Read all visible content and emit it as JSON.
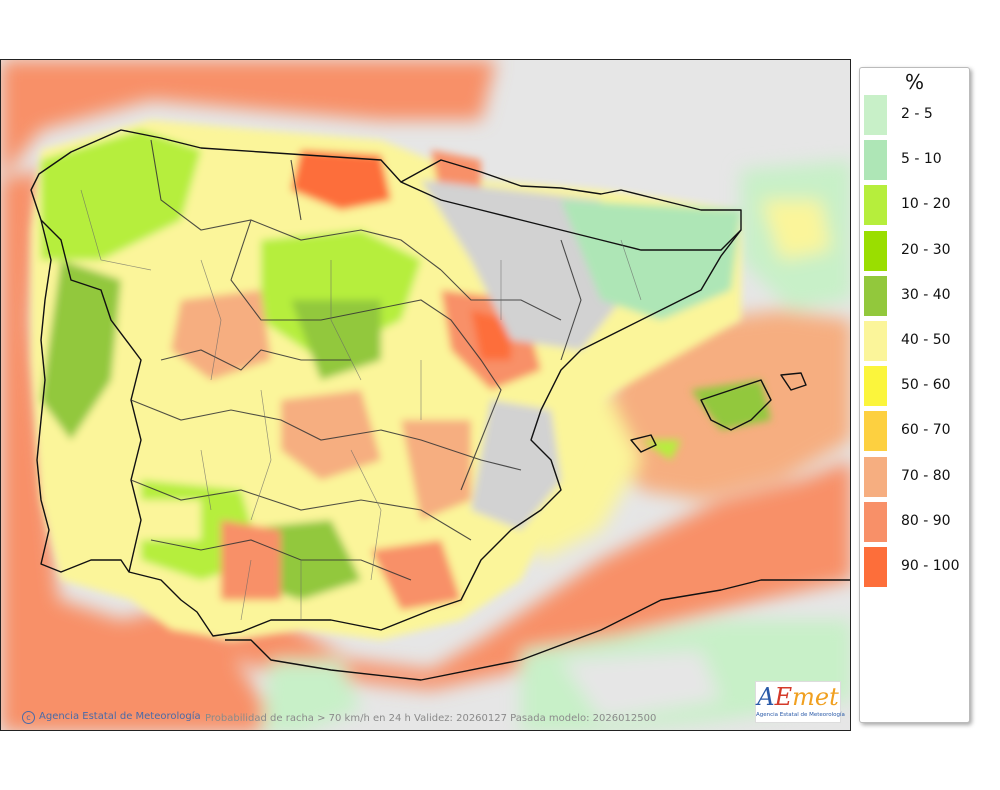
{
  "legend": {
    "unit": "%",
    "items": [
      {
        "label": "2 - 5",
        "color": "#c8f0c8"
      },
      {
        "label": "5 - 10",
        "color": "#aee6b6"
      },
      {
        "label": "10 - 20",
        "color": "#b6ee3c"
      },
      {
        "label": "20 - 30",
        "color": "#9ade00"
      },
      {
        "label": "30 - 40",
        "color": "#92c83c"
      },
      {
        "label": "40 - 50",
        "color": "#fbf59a"
      },
      {
        "label": "50 - 60",
        "color": "#fbf53c"
      },
      {
        "label": "60 - 70",
        "color": "#fdd040"
      },
      {
        "label": "70 - 80",
        "color": "#f6ae80"
      },
      {
        "label": "80 - 90",
        "color": "#f89068"
      },
      {
        "label": "90 - 100",
        "color": "#fd6e3a"
      }
    ]
  },
  "credit": "Agencia Estatal de Meteorología",
  "caption": "Probabilidad de racha > 70 km/h en 24 h  Validez: 20260127 Pasada modelo: 2026012500",
  "logo": {
    "word_parts": [
      "A",
      "E",
      "met"
    ],
    "subtitle": "Agencia Estatal de Meteorología"
  },
  "map": {
    "colors": {
      "background": "#e6e6e6",
      "sea_high": "#f89068",
      "sea_mid": "#f6ae80",
      "yellow": "#fbf59a",
      "green": "#b6ee3c",
      "dark_green": "#92c83c",
      "light_green": "#c8f0c8",
      "red": "#fd6e3a",
      "grey_relief": "#d2d2d2"
    }
  }
}
